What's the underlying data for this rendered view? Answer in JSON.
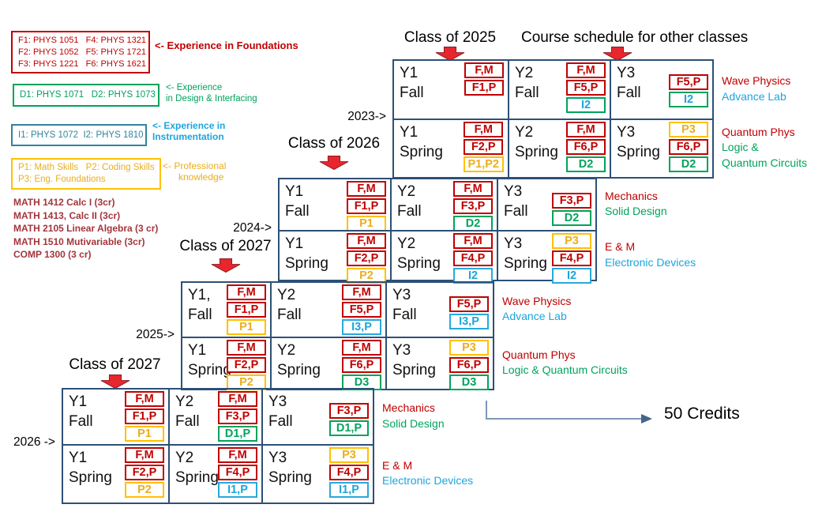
{
  "headers": {
    "other_classes": "Course schedule for other classes"
  },
  "legend": {
    "foundations": {
      "lines": [
        "F1: PHYS 1051   F4: PHYS 1321",
        "F2: PHYS 1052   F5: PHYS 1721",
        "F3: PHYS 1221   F6: PHYS 1621"
      ],
      "note_lines": [
        "<- Experience in Foundations"
      ]
    },
    "design": {
      "lines": [
        "D1: PHYS 1071   D2: PHYS 1073"
      ],
      "note_lines": [
        "<- Experience",
        "in Design & Interfacing"
      ]
    },
    "instrumentation": {
      "lines": [
        "I1: PHYS 1072  I2: PHYS 1810"
      ],
      "note_lines": [
        "<- Experience in",
        "Instrumentation"
      ]
    },
    "professional": {
      "lines": [
        "P1: Math Skills   P2: Coding Skills",
        "P3: Eng. Foundations"
      ],
      "note_lines": [
        "<- Professional",
        "knowledge"
      ]
    }
  },
  "math_courses": [
    "MATH 1412 Calc I (3cr)",
    "MATH 1413, Calc II (3cr)",
    "MATH 2105 Linear Algebra (3 cr)",
    "MATH 1510 Mutivariable (3cr)",
    "COMP 1300 (3 cr)"
  ],
  "blocks": [
    {
      "id": "class-2025",
      "header": "Class of 2025",
      "year_marker": "2023->",
      "rows": [
        {
          "semester": "Fall",
          "cells": [
            {
              "label": [
                "Y1",
                "Fall"
              ],
              "chips": [
                [
                  "F,M",
                  "red"
                ],
                [
                  "F1,P",
                  "red"
                ]
              ]
            },
            {
              "label": [
                "Y2",
                "Fall"
              ],
              "chips": [
                [
                  "F,M",
                  "red"
                ],
                [
                  "F5,P",
                  "red"
                ],
                [
                  "I2",
                  "green-cyan"
                ]
              ]
            },
            {
              "label": [
                "Y3",
                "Fall"
              ],
              "chips": [
                [
                  "F5,P",
                  "red"
                ],
                [
                  "I2",
                  "green-cyan"
                ]
              ]
            }
          ],
          "side_labels": [
            [
              "Wave Physics",
              "red"
            ],
            [
              "Advance Lab",
              "cyan"
            ]
          ]
        },
        {
          "semester": "Spring",
          "cells": [
            {
              "label": [
                "Y1",
                "Spring"
              ],
              "chips": [
                [
                  "F,M",
                  "red"
                ],
                [
                  "F2,P",
                  "red"
                ],
                [
                  "P1,P2",
                  "yellow"
                ]
              ]
            },
            {
              "label": [
                "Y2",
                "Spring"
              ],
              "chips": [
                [
                  "F,M",
                  "red"
                ],
                [
                  "F6,P",
                  "red"
                ],
                [
                  "D2",
                  "green"
                ]
              ]
            },
            {
              "label": [
                "Y3",
                "Spring"
              ],
              "chips": [
                [
                  "P3",
                  "yellow"
                ],
                [
                  "F6,P",
                  "red"
                ],
                [
                  "D2",
                  "green"
                ]
              ]
            }
          ],
          "side_labels": [
            [
              "Quantum Phys",
              "red"
            ],
            [
              "Logic &",
              "green"
            ],
            [
              "Quantum Circuits",
              "green"
            ]
          ]
        }
      ]
    },
    {
      "id": "class-2026",
      "header": "Class of 2026",
      "year_marker": "2024->",
      "rows": [
        {
          "semester": "Fall",
          "cells": [
            {
              "label": [
                "Y1",
                "Fall"
              ],
              "chips": [
                [
                  "F,M",
                  "red"
                ],
                [
                  "F1,P",
                  "red"
                ],
                [
                  "P1",
                  "yellow"
                ]
              ]
            },
            {
              "label": [
                "Y2",
                "Fall"
              ],
              "chips": [
                [
                  "F,M",
                  "red"
                ],
                [
                  "F3,P",
                  "red"
                ],
                [
                  "D2",
                  "green"
                ]
              ]
            },
            {
              "label": [
                "Y3",
                "Fall"
              ],
              "chips": [
                [
                  "F3,P",
                  "red"
                ],
                [
                  "D2",
                  "green"
                ]
              ]
            }
          ],
          "side_labels": [
            [
              "Mechanics",
              "red"
            ],
            [
              "Solid Design",
              "green"
            ]
          ]
        },
        {
          "semester": "Spring",
          "cells": [
            {
              "label": [
                "Y1",
                "Spring"
              ],
              "chips": [
                [
                  "F,M",
                  "red"
                ],
                [
                  "F2,P",
                  "red"
                ],
                [
                  "P2",
                  "yellow"
                ]
              ]
            },
            {
              "label": [
                "Y2",
                "Spring"
              ],
              "chips": [
                [
                  "F,M",
                  "red"
                ],
                [
                  "F4,P",
                  "red"
                ],
                [
                  "I2",
                  "cyan"
                ]
              ]
            },
            {
              "label": [
                "Y3",
                "Spring"
              ],
              "chips": [
                [
                  "P3",
                  "yellow"
                ],
                [
                  "F4,P",
                  "red"
                ],
                [
                  "I2",
                  "cyan"
                ]
              ]
            }
          ],
          "side_labels": [
            [
              "E & M",
              "red"
            ],
            [
              "Electronic Devices",
              "cyan"
            ]
          ]
        }
      ]
    },
    {
      "id": "class-2027",
      "header": "Class of 2027",
      "year_marker": "2025->",
      "rows": [
        {
          "semester": "Fall",
          "cells": [
            {
              "label": [
                "Y1,",
                "Fall"
              ],
              "chips": [
                [
                  "F,M",
                  "red"
                ],
                [
                  "F1,P",
                  "red"
                ],
                [
                  "P1",
                  "yellow"
                ]
              ]
            },
            {
              "label": [
                "Y2",
                "Fall"
              ],
              "chips": [
                [
                  "F,M",
                  "red"
                ],
                [
                  "F5,P",
                  "red"
                ],
                [
                  "I3,P",
                  "cyan"
                ]
              ]
            },
            {
              "label": [
                "Y3",
                "Fall"
              ],
              "chips": [
                [
                  "F5,P",
                  "red"
                ],
                [
                  "I3,P",
                  "cyan"
                ]
              ]
            }
          ],
          "side_labels": [
            [
              "Wave Physics",
              "red"
            ],
            [
              "Advance Lab",
              "cyan"
            ]
          ]
        },
        {
          "semester": "Spring",
          "cells": [
            {
              "label": [
                "Y1",
                "Spring"
              ],
              "chips": [
                [
                  "F,M",
                  "red"
                ],
                [
                  "F2,P",
                  "red"
                ],
                [
                  "P2",
                  "yellow"
                ]
              ]
            },
            {
              "label": [
                "Y2",
                "Spring"
              ],
              "chips": [
                [
                  "F,M",
                  "red"
                ],
                [
                  "F6,P",
                  "red"
                ],
                [
                  "D3",
                  "green"
                ]
              ]
            },
            {
              "label": [
                "Y3",
                "Spring"
              ],
              "chips": [
                [
                  "P3",
                  "yellow"
                ],
                [
                  "F6,P",
                  "red"
                ],
                [
                  "D3",
                  "green"
                ]
              ]
            }
          ],
          "side_labels": [
            [
              "Quantum Phys",
              "red"
            ],
            [
              "Logic & Quantum Circuits",
              "green"
            ]
          ]
        }
      ]
    },
    {
      "id": "class-2027-b",
      "header": "Class of 2027",
      "year_marker": "2026 ->",
      "rows": [
        {
          "semester": "Fall",
          "cells": [
            {
              "label": [
                "Y1",
                "Fall"
              ],
              "chips": [
                [
                  "F,M",
                  "red"
                ],
                [
                  "F1,P",
                  "red"
                ],
                [
                  "P1",
                  "yellow"
                ]
              ]
            },
            {
              "label": [
                "Y2",
                "Fall"
              ],
              "chips": [
                [
                  "F,M",
                  "red"
                ],
                [
                  "F3,P",
                  "red"
                ],
                [
                  "D1,P",
                  "green"
                ]
              ]
            },
            {
              "label": [
                "Y3",
                "Fall"
              ],
              "chips": [
                [
                  "F3,P",
                  "red"
                ],
                [
                  "D1,P",
                  "green"
                ]
              ]
            }
          ],
          "side_labels": [
            [
              "Mechanics",
              "red"
            ],
            [
              "Solid Design",
              "green"
            ]
          ]
        },
        {
          "semester": "Spring",
          "cells": [
            {
              "label": [
                "Y1",
                "Spring"
              ],
              "chips": [
                [
                  "F,M",
                  "red"
                ],
                [
                  "F2,P",
                  "red"
                ],
                [
                  "P2",
                  "yellow"
                ]
              ]
            },
            {
              "label": [
                "Y2",
                "Spring"
              ],
              "chips": [
                [
                  "F,M",
                  "red"
                ],
                [
                  "F4,P",
                  "red"
                ],
                [
                  "I1,P",
                  "cyan"
                ]
              ]
            },
            {
              "label": [
                "Y3",
                "Spring"
              ],
              "chips": [
                [
                  "P3",
                  "yellow"
                ],
                [
                  "F4,P",
                  "red"
                ],
                [
                  "I1,P",
                  "cyan"
                ]
              ]
            }
          ],
          "side_labels": [
            [
              "E & M",
              "red"
            ],
            [
              "Electronic Devices",
              "cyan"
            ]
          ]
        }
      ]
    }
  ],
  "credits_label": "50 Credits",
  "colors": {
    "foundations_red": "#C00000",
    "professional_yellow": "#FFC000",
    "design_green": "#00A35C",
    "instrumentation_cyan": "#1CA5DC",
    "instrumentation_teal": "#31849B",
    "math_maroon": "#A3353C",
    "grid_navy": "#2D5076",
    "arrow_red": "#E8262D",
    "connector_blue": "#8096B8"
  }
}
